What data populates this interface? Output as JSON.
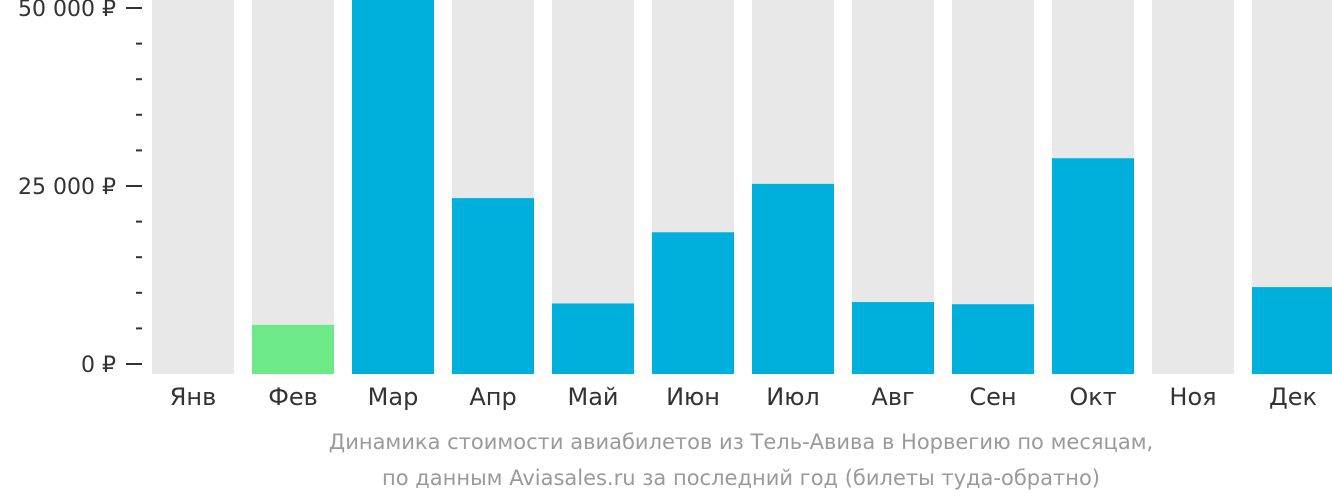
{
  "chart_data": {
    "type": "bar",
    "categories": [
      "Янв",
      "Фев",
      "Мар",
      "Апр",
      "Май",
      "Июн",
      "Июл",
      "Авг",
      "Сен",
      "Окт",
      "Ноя",
      "Дек"
    ],
    "values": [
      null,
      5500,
      51200,
      23300,
      8500,
      18500,
      25300,
      8700,
      8400,
      28900,
      null,
      10800
    ],
    "highlight_index": 1,
    "ylim": [
      0,
      50000
    ],
    "y_ticks": [
      {
        "value": 0,
        "label": "0 ₽"
      },
      {
        "value": 25000,
        "label": "25 000 ₽"
      },
      {
        "value": 50000,
        "label": "50 000 ₽"
      }
    ],
    "minor_tick_step": 5000,
    "colors": {
      "bar": "#00b0dc",
      "highlight": "#6de987",
      "background_bar": "#e8e8e8",
      "axis_text": "#333333"
    }
  },
  "caption": {
    "line1": "Динамика стоимости авиабилетов из Тель-Авива в Норвегию по месяцам,",
    "line2": "по данным Aviasales.ru за последний год (билеты туда-обратно)"
  }
}
